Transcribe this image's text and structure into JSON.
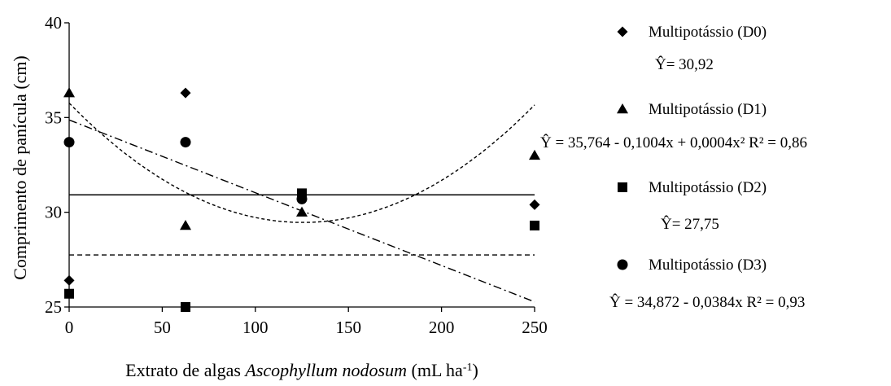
{
  "chart_data": {
    "type": "scatter",
    "title": "",
    "xlabel": {
      "prefix": "Extrato de algas ",
      "italic": "Ascophyllum nodosum",
      "unit_base": " (mL ha",
      "unit_sup": "-1",
      "unit_end": ")"
    },
    "ylabel": "Comprimento de panícula (cm)",
    "xlim": [
      0,
      250
    ],
    "ylim": [
      25,
      40
    ],
    "xticks": [
      0,
      50,
      100,
      150,
      200,
      250
    ],
    "yticks": [
      25,
      30,
      35,
      40
    ],
    "grid": false,
    "legend_position": "right",
    "series": [
      {
        "name": "Multipotássio (D0)",
        "marker": "diamond",
        "x": [
          0,
          62.5,
          125,
          250
        ],
        "y": [
          26.4,
          36.3,
          30.7,
          30.4
        ],
        "fit": {
          "kind": "constant",
          "value": 30.92,
          "line_style": "solid"
        },
        "equation": "Ŷ= 30,92"
      },
      {
        "name": "Multipotássio (D1)",
        "marker": "triangle",
        "x": [
          0,
          62.5,
          125,
          250
        ],
        "y": [
          36.3,
          29.3,
          30.0,
          33.0
        ],
        "fit": {
          "kind": "quadratic",
          "coef": [
            35.764,
            -0.1004,
            0.0004
          ],
          "line_style": "dotted"
        },
        "equation": "Ŷ = 35,764  - 0,1004x + 0,0004x² R² = 0,86"
      },
      {
        "name": "Multipotássio (D2)",
        "marker": "square",
        "x": [
          0,
          62.5,
          125,
          250
        ],
        "y": [
          25.7,
          25.0,
          31.0,
          29.3
        ],
        "fit": {
          "kind": "constant",
          "value": 27.75,
          "line_style": "dashed"
        },
        "equation": "Ŷ= 27,75"
      },
      {
        "name": "Multipotássio (D3)",
        "marker": "circle",
        "x": [
          0,
          62.5,
          125,
          250
        ],
        "y": [
          33.7,
          33.7,
          30.7,
          null
        ],
        "fit": {
          "kind": "linear",
          "coef": [
            34.872,
            -0.0384
          ],
          "line_style": "dashdot"
        },
        "equation": "Ŷ =  34,872 - 0,0384x R² = 0,93"
      }
    ]
  }
}
